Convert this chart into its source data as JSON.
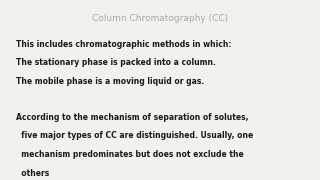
{
  "title": "Column Chromatography (CC)",
  "title_color": "#a8a8a8",
  "title_fontsize": 6.5,
  "background_color": "#f2f2ed",
  "lines_para1": [
    "This includes chromatographic methods in which:",
    "The stationary phase is packed into a column.",
    "The mobile phase is a moving liquid or gas."
  ],
  "lines_para2": [
    "According to the mechanism of separation of solutes,",
    "  five major types of CC are distinguished. Usually, one",
    "  mechanism predominates but does not exclude the",
    "  others"
  ],
  "body_fontsize": 5.5,
  "body_color": "#1a1a1a"
}
